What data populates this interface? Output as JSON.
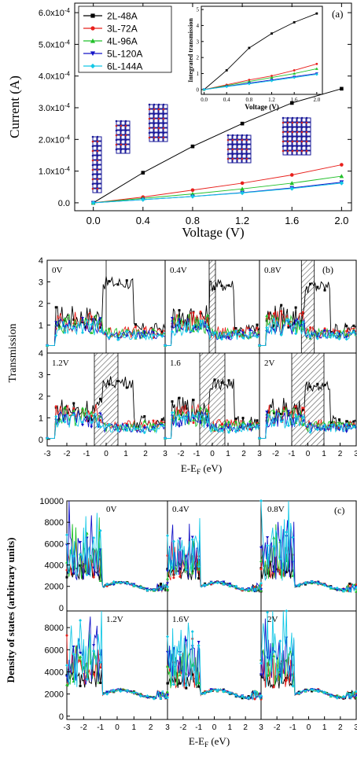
{
  "colors": {
    "2L-48A": "#000000",
    "3L-72A": "#e8201c",
    "4L-96A": "#22c02a",
    "5L-120A": "#1414c8",
    "6L-144A": "#14c8e6",
    "hatch": "#555555",
    "atom_red": "#cc2222",
    "atom_blue": "#1a1a99"
  },
  "chart_data": [
    {
      "panel": "(a)",
      "type": "line",
      "xlabel": "Voltage (V)",
      "ylabel": "Current (A)",
      "xlim": [
        -0.15,
        2.08
      ],
      "ylim": [
        -2.5e-05,
        0.00063
      ],
      "x_ticks": [
        "0.0",
        "0.4",
        "0.8",
        "1.2",
        "1.6",
        "2.0"
      ],
      "y_ticks": [
        "0.0",
        "1.0x10⁻⁴",
        "2.0x10⁻⁴",
        "3.0x10⁻⁴",
        "4.0x10⁻⁴",
        "5.0x10⁻⁴",
        "6.0x10⁻⁴"
      ],
      "legend_position": "top-left",
      "x": [
        0.0,
        0.4,
        0.8,
        1.2,
        1.6,
        2.0
      ],
      "series": [
        {
          "name": "2L-48A",
          "marker": "square",
          "values": [
            0,
            9.5e-05,
            0.000178,
            0.00025,
            0.000315,
            0.00036
          ]
        },
        {
          "name": "3L-72A",
          "marker": "circle",
          "values": [
            0,
            1.8e-05,
            4e-05,
            6.2e-05,
            8.8e-05,
            0.00012
          ]
        },
        {
          "name": "4L-96A",
          "marker": "triangle-up",
          "values": [
            0,
            1.4e-05,
            2.8e-05,
            4.4e-05,
            6.2e-05,
            8.4e-05
          ]
        },
        {
          "name": "5L-120A",
          "marker": "triangle-down",
          "values": [
            0,
            1e-05,
            2e-05,
            3.2e-05,
            4.7e-05,
            6.5e-05
          ]
        },
        {
          "name": "6L-144A",
          "marker": "diamond",
          "values": [
            0,
            1e-05,
            2e-05,
            3.1e-05,
            4.5e-05,
            6.2e-05
          ]
        }
      ],
      "inset": {
        "type": "line",
        "xlabel": "Voltage (V)",
        "ylabel": "Integrated transmission",
        "xlim": [
          -0.05,
          2.1
        ],
        "ylim": [
          -0.3,
          5.2
        ],
        "x_ticks": [
          "0.0",
          "0.4",
          "0.8",
          "1.2",
          "1.6",
          "2.0"
        ],
        "y_ticks": [
          "0",
          "1",
          "2",
          "3",
          "4",
          "5"
        ],
        "x": [
          0.0,
          0.4,
          0.8,
          1.2,
          1.6,
          2.0
        ],
        "series": [
          {
            "name": "2L-48A",
            "values": [
              0,
              1.2,
              2.6,
              3.5,
              4.2,
              4.75
            ]
          },
          {
            "name": "3L-72A",
            "values": [
              0,
              0.3,
              0.6,
              0.85,
              1.2,
              1.6
            ]
          },
          {
            "name": "4L-96A",
            "values": [
              0,
              0.25,
              0.5,
              0.75,
              1.0,
              1.3
            ]
          },
          {
            "name": "5L-120A",
            "values": [
              0,
              0.2,
              0.4,
              0.6,
              0.8,
              1.0
            ]
          },
          {
            "name": "6L-144A",
            "values": [
              0,
              0.18,
              0.36,
              0.55,
              0.75,
              0.95
            ]
          }
        ]
      }
    },
    {
      "panel": "(b)",
      "type": "line",
      "ylabel": "Transmission",
      "xlabel": "E-E",
      "xlabel_sub": "F",
      "xlabel_unit": " (eV)",
      "xlim": [
        -3,
        3
      ],
      "ylim": [
        -0.3,
        4
      ],
      "x_ticks": [
        "-3",
        "-2",
        "-1",
        "0",
        "1",
        "2",
        "3"
      ],
      "y_ticks": [
        "0",
        "1",
        "2",
        "3",
        "4"
      ],
      "biases": [
        "0V",
        "0.4V",
        "0.8V",
        "1.2V",
        "1.6",
        "2V"
      ],
      "bias_windows": [
        [
          0,
          0
        ],
        [
          -0.2,
          0.2
        ],
        [
          -0.4,
          0.4
        ],
        [
          -0.6,
          0.6
        ],
        [
          -0.8,
          0.8
        ],
        [
          -1.0,
          1.0
        ]
      ],
      "description": "Transmission spectra for the five ribbon widths under six bias voltages; 2L-48A shows a peak near 3 in the window 0 to 1.5 eV."
    },
    {
      "panel": "(c)",
      "type": "line",
      "ylabel": "Density of states (arbitrary units)",
      "xlabel": "E-E",
      "xlabel_sub": "F",
      "xlabel_unit": " (eV)",
      "xlim": [
        -3,
        3
      ],
      "top_ylim": [
        -300,
        10000
      ],
      "bottom_ylim": [
        -300,
        9500
      ],
      "x_ticks": [
        "-3",
        "-2",
        "-1",
        "0",
        "1",
        "2",
        "3"
      ],
      "top_y_ticks": [
        "0",
        "2000",
        "4000",
        "6000",
        "8000",
        "10000"
      ],
      "bottom_y_ticks": [
        "0",
        "2000",
        "4000",
        "6000",
        "8000"
      ],
      "biases": [
        "0V",
        "0.4V",
        "0.8V",
        "1.2V",
        "1.6V",
        "2V"
      ]
    }
  ]
}
